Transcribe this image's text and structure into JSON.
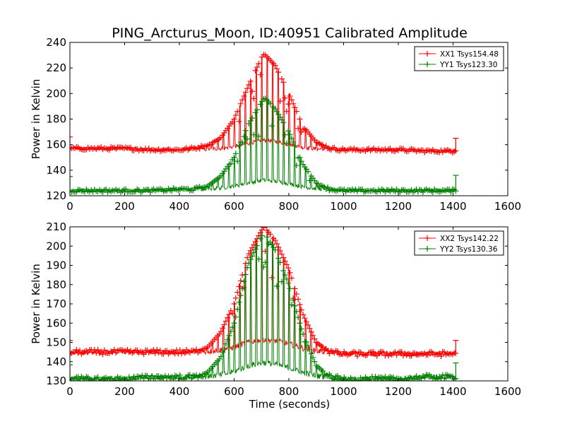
{
  "chart_data": {
    "type": "line",
    "title": "PING_Arcturus_Moon, ID:40951 Calibrated Amplitude",
    "xlabel": "Time (seconds)",
    "panels": [
      {
        "ylabel": "Power in Kelvin",
        "xlim": [
          0,
          1600
        ],
        "ylim": [
          120,
          240
        ],
        "xticks": [
          0,
          200,
          400,
          600,
          800,
          1000,
          1200,
          1400,
          1600
        ],
        "yticks": [
          120,
          140,
          160,
          180,
          200,
          220,
          240
        ],
        "legend_position": "top-right",
        "series": [
          {
            "name": "XX1 Tsys154.48",
            "color": "#ff0000",
            "x": [
              0,
              100,
              200,
              300,
              400,
              450,
              500,
              550,
              600,
              650,
              700,
              710,
              750,
              800,
              850,
              900,
              950,
              1000,
              1100,
              1200,
              1300,
              1400,
              1410
            ],
            "y": [
              157,
              157,
              157,
              156,
              156,
              157,
              159,
              165,
              180,
              205,
              228,
              231,
              222,
              200,
              175,
              162,
              157,
              156,
              156,
              156,
              155,
              155,
              156
            ]
          },
          {
            "name": "YY1 Tsys123.30",
            "color": "#008000",
            "x": [
              0,
              100,
              200,
              300,
              400,
              450,
              500,
              550,
              600,
              650,
              700,
              710,
              750,
              800,
              850,
              900,
              950,
              1000,
              1100,
              1200,
              1300,
              1400,
              1410
            ],
            "y": [
              124,
              124,
              124,
              124,
              125,
              125,
              127,
              135,
              150,
              175,
              193,
              197,
              188,
              170,
              145,
              130,
              125,
              124,
              124,
              124,
              124,
              124,
              125
            ]
          }
        ]
      },
      {
        "ylabel": "Power in Kelvin",
        "xlim": [
          0,
          1600
        ],
        "ylim": [
          130,
          210
        ],
        "xticks": [
          0,
          200,
          400,
          600,
          800,
          1000,
          1200,
          1400,
          1600
        ],
        "yticks": [
          130,
          140,
          150,
          160,
          170,
          180,
          190,
          200,
          210
        ],
        "legend_position": "top-right",
        "series": [
          {
            "name": "XX2 Tsys142.22",
            "color": "#ff0000",
            "x": [
              0,
              100,
              200,
              300,
              400,
              450,
              500,
              550,
              600,
              650,
              700,
              710,
              750,
              800,
              850,
              900,
              950,
              1000,
              1100,
              1200,
              1300,
              1400,
              1410
            ],
            "y": [
              145,
              145,
              145,
              145,
              145,
              145,
              147,
              155,
              170,
              195,
              208,
              210,
              203,
              188,
              165,
              150,
              145,
              144,
              144,
              144,
              144,
              144,
              145
            ]
          },
          {
            "name": "YY2 Tsys130.36",
            "color": "#008000",
            "x": [
              0,
              100,
              200,
              300,
              400,
              450,
              500,
              550,
              600,
              650,
              700,
              710,
              750,
              800,
              850,
              900,
              950,
              1000,
              1100,
              1200,
              1300,
              1400,
              1410
            ],
            "y": [
              131,
              131,
              131,
              132,
              132,
              132,
              134,
              142,
              160,
              190,
              205,
              207,
              198,
              180,
              155,
              138,
              132,
              131,
              131,
              131,
              132,
              132,
              132
            ]
          }
        ]
      }
    ]
  }
}
